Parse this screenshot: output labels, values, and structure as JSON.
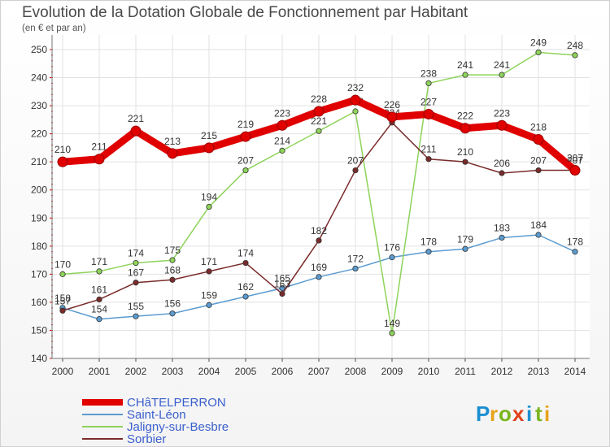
{
  "title": "Evolution de la Dotation Globale de Fonctionnement par Habitant",
  "subtitle": "(en € et par an)",
  "logo": {
    "letters": [
      "P",
      "r",
      "o",
      "x",
      "i",
      "t",
      "i"
    ],
    "colors": [
      "#1a8fd1",
      "#e8a21a",
      "#7ab51d",
      "#e0411c",
      "#1a8fd1",
      "#7ab51d",
      "#e8a21a"
    ]
  },
  "chart_data": {
    "type": "line",
    "title": "Evolution de la Dotation Globale de Fonctionnement par Habitant",
    "subtitle": "(en € et par an)",
    "xlabel": "",
    "ylabel": "",
    "x": [
      "2000",
      "2001",
      "2002",
      "2003",
      "2004",
      "2005",
      "2006",
      "2007",
      "2008",
      "2009",
      "2010",
      "2011",
      "2012",
      "2013",
      "2014"
    ],
    "yticks": [
      "140",
      "150",
      "160",
      "170",
      "180",
      "190",
      "200",
      "210",
      "220",
      "230",
      "240",
      "250"
    ],
    "ylim": [
      140,
      250
    ],
    "grid": true,
    "legend_position": "bottom-left",
    "series": [
      {
        "name": "Saint-Léon",
        "color": "#5b9bd0",
        "values": [
          158,
          154,
          155,
          156,
          159,
          162,
          165,
          169,
          172,
          176,
          178,
          179,
          183,
          184,
          178
        ]
      },
      {
        "name": "Jaligny-sur-Besbre",
        "color": "#8ed35a",
        "values": [
          170,
          171,
          174,
          175,
          194,
          207,
          214,
          221,
          228,
          149,
          238,
          241,
          241,
          249,
          248
        ]
      },
      {
        "name": "Sorbier",
        "color": "#7a2a2a",
        "values": [
          157,
          161,
          167,
          168,
          171,
          174,
          163,
          182,
          207,
          224,
          211,
          210,
          206,
          207,
          207
        ]
      },
      {
        "name": "CHâTELPERRON",
        "color": "#e00000",
        "values": [
          210,
          211,
          221,
          213,
          215,
          219,
          223,
          228,
          232,
          226,
          227,
          222,
          223,
          218,
          207
        ]
      }
    ]
  }
}
